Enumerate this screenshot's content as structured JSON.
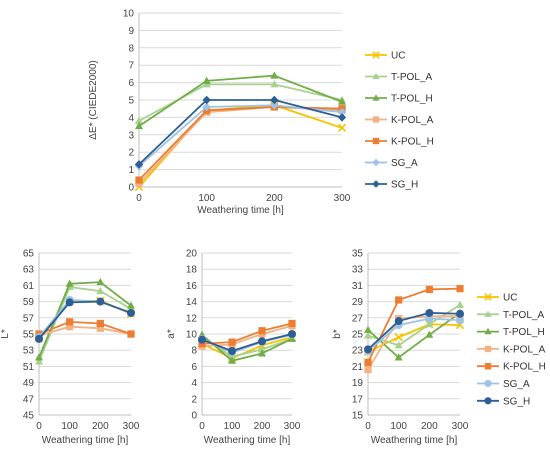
{
  "chart_data": [
    {
      "type": "line",
      "id": "top",
      "xlabel": "Weathering time [h]",
      "ylabel": "ΔE* (CIEDE2000)",
      "x": [
        0,
        100,
        200,
        300
      ],
      "xticks": [
        "0",
        "100",
        "200",
        "300"
      ],
      "ylim": [
        0,
        10
      ],
      "yticks": [
        "0",
        "1",
        "2",
        "3",
        "4",
        "5",
        "6",
        "7",
        "8",
        "9",
        "10"
      ],
      "grid": true,
      "legend": "right",
      "series": [
        {
          "name": "UC",
          "color": "#F5C400",
          "marker": "x",
          "values": [
            0,
            4.4,
            4.7,
            3.4
          ]
        },
        {
          "name": "T-POL_A",
          "color": "#A9D18E",
          "marker": "triangle",
          "values": [
            3.8,
            5.9,
            5.9,
            5.0
          ]
        },
        {
          "name": "T-POL_H",
          "color": "#70AD47",
          "marker": "triangle",
          "values": [
            3.5,
            6.1,
            6.4,
            4.9
          ]
        },
        {
          "name": "K-POL_A",
          "color": "#F4B183",
          "marker": "square",
          "values": [
            0.2,
            4.3,
            4.6,
            4.4
          ]
        },
        {
          "name": "K-POL_H",
          "color": "#ED7D31",
          "marker": "square",
          "values": [
            0.4,
            4.4,
            4.6,
            4.5
          ]
        },
        {
          "name": "SG_A",
          "color": "#9DC3E6",
          "marker": "diamond",
          "values": [
            1.2,
            4.6,
            4.7,
            4.3
          ]
        },
        {
          "name": "SG_H",
          "color": "#2E5E93",
          "marker": "diamond",
          "values": [
            1.3,
            5.0,
            5.0,
            4.0
          ]
        }
      ]
    },
    {
      "type": "line",
      "id": "L",
      "xlabel": "Weathering time [h]",
      "ylabel": "L*",
      "x": [
        0,
        100,
        200,
        300
      ],
      "xticks": [
        "0",
        "100",
        "200",
        "300"
      ],
      "ylim": [
        45,
        65
      ],
      "yticks": [
        "45",
        "47",
        "49",
        "51",
        "53",
        "55",
        "57",
        "59",
        "61",
        "63",
        "65"
      ],
      "grid": true,
      "series": [
        {
          "name": "UC",
          "color": "#F5C400",
          "marker": "x",
          "values": [
            54.5,
            59.0,
            59.1,
            57.5
          ]
        },
        {
          "name": "T-POL_A",
          "color": "#A9D18E",
          "marker": "triangle",
          "values": [
            51.6,
            60.8,
            60.3,
            58.1
          ]
        },
        {
          "name": "T-POL_H",
          "color": "#70AD47",
          "marker": "triangle",
          "values": [
            52.1,
            61.2,
            61.4,
            58.5
          ]
        },
        {
          "name": "K-POL_A",
          "color": "#F4B183",
          "marker": "square",
          "values": [
            54.8,
            55.9,
            55.7,
            55.0
          ]
        },
        {
          "name": "K-POL_H",
          "color": "#ED7D31",
          "marker": "square",
          "values": [
            55.0,
            56.5,
            56.3,
            55.0
          ]
        },
        {
          "name": "SG_A",
          "color": "#9DC3E6",
          "marker": "circle",
          "values": [
            54.6,
            59.2,
            59.0,
            57.6
          ]
        },
        {
          "name": "SG_H",
          "color": "#2E5E93",
          "marker": "circle",
          "values": [
            54.4,
            58.9,
            59.0,
            57.6
          ]
        }
      ]
    },
    {
      "type": "line",
      "id": "a",
      "xlabel": "Weathering time [h]",
      "ylabel": "a*",
      "x": [
        0,
        100,
        200,
        300
      ],
      "xticks": [
        "0",
        "100",
        "200",
        "300"
      ],
      "ylim": [
        0,
        20
      ],
      "yticks": [
        "0",
        "2",
        "4",
        "6",
        "8",
        "10",
        "12",
        "14",
        "16",
        "18",
        "20"
      ],
      "grid": true,
      "series": [
        {
          "name": "UC",
          "color": "#F5C400",
          "marker": "x",
          "values": [
            8.8,
            7.0,
            8.6,
            9.6
          ]
        },
        {
          "name": "T-POL_A",
          "color": "#A9D18E",
          "marker": "triangle",
          "values": [
            9.7,
            7.2,
            8.1,
            9.4
          ]
        },
        {
          "name": "T-POL_H",
          "color": "#70AD47",
          "marker": "triangle",
          "values": [
            9.9,
            6.7,
            7.6,
            9.4
          ]
        },
        {
          "name": "K-POL_A",
          "color": "#F4B183",
          "marker": "square",
          "values": [
            8.5,
            8.7,
            10.0,
            11.0
          ]
        },
        {
          "name": "K-POL_H",
          "color": "#ED7D31",
          "marker": "square",
          "values": [
            8.8,
            9.0,
            10.4,
            11.3
          ]
        },
        {
          "name": "SG_A",
          "color": "#9DC3E6",
          "marker": "circle",
          "values": [
            9.4,
            7.7,
            9.0,
            9.9
          ]
        },
        {
          "name": "SG_H",
          "color": "#2E5E93",
          "marker": "circle",
          "values": [
            9.3,
            7.9,
            9.1,
            10.0
          ]
        }
      ]
    },
    {
      "type": "line",
      "id": "b",
      "xlabel": "Weathering time [h]",
      "ylabel": "b*",
      "x": [
        0,
        100,
        200,
        300
      ],
      "xticks": [
        "0",
        "100",
        "200",
        "300"
      ],
      "ylim": [
        15,
        35
      ],
      "yticks": [
        "15",
        "17",
        "19",
        "21",
        "23",
        "25",
        "27",
        "29",
        "31",
        "33",
        "35"
      ],
      "grid": true,
      "legend": "right",
      "series": [
        {
          "name": "UC",
          "color": "#F5C400",
          "marker": "x",
          "values": [
            22.8,
            24.6,
            26.2,
            26.1
          ]
        },
        {
          "name": "T-POL_A",
          "color": "#A9D18E",
          "marker": "triangle",
          "values": [
            24.8,
            23.6,
            26.2,
            28.6
          ]
        },
        {
          "name": "T-POL_H",
          "color": "#70AD47",
          "marker": "triangle",
          "values": [
            25.5,
            22.1,
            24.9,
            27.6
          ]
        },
        {
          "name": "K-POL_A",
          "color": "#F4B183",
          "marker": "square",
          "values": [
            20.6,
            26.9,
            27.2,
            27.2
          ]
        },
        {
          "name": "K-POL_H",
          "color": "#ED7D31",
          "marker": "square",
          "values": [
            21.5,
            29.2,
            30.5,
            30.6
          ]
        },
        {
          "name": "SG_A",
          "color": "#9DC3E6",
          "marker": "circle",
          "values": [
            22.9,
            26.1,
            26.9,
            26.7
          ]
        },
        {
          "name": "SG_H",
          "color": "#2E5E93",
          "marker": "circle",
          "values": [
            23.1,
            26.6,
            27.6,
            27.5
          ]
        }
      ]
    }
  ]
}
